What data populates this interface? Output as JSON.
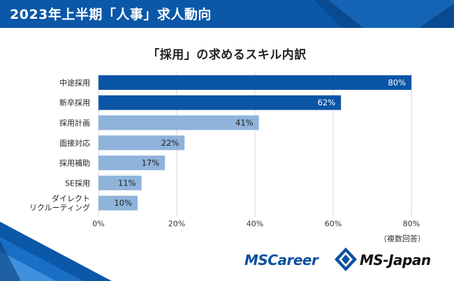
{
  "header": {
    "title": "2023年上半期「人事」求人動向"
  },
  "note": "（複数回答）",
  "logos": {
    "mscareer": "MSCareer",
    "msjapan": "MS-Japan"
  },
  "colors": {
    "header": "#0b57a8",
    "dark_bar": "#0b55a6",
    "light_bar": "#8fb3db",
    "grid": "#d9d9d9"
  },
  "chart_data": {
    "type": "bar",
    "orientation": "horizontal",
    "title": "「採用」の求めるスキル内訳",
    "categories": [
      "中途採用",
      "新卒採用",
      "採用計画",
      "面接対応",
      "採用補助",
      "SE採用",
      "ダイレクト\nリクルーティング"
    ],
    "values": [
      80,
      62,
      41,
      22,
      17,
      11,
      10
    ],
    "value_labels": [
      "80%",
      "62%",
      "41%",
      "22%",
      "17%",
      "11%",
      "10%"
    ],
    "highlight": [
      true,
      true,
      false,
      false,
      false,
      false,
      false
    ],
    "xticks": [
      "0%",
      "20%",
      "40%",
      "60%",
      "80%"
    ],
    "xlim": [
      0,
      80
    ],
    "grid": true
  }
}
